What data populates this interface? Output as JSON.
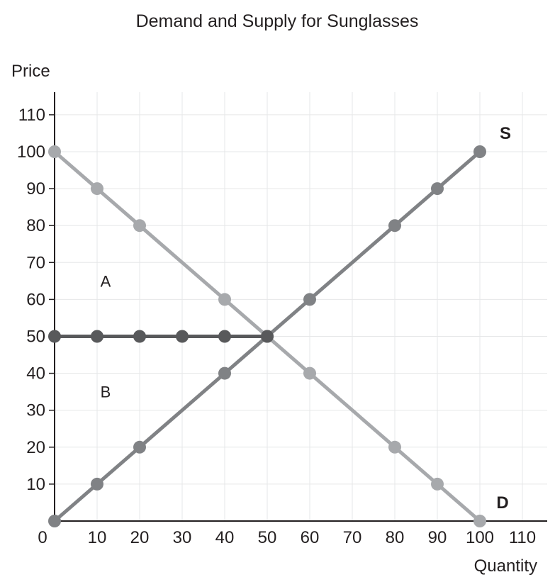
{
  "chart_data": {
    "type": "line",
    "title": "Demand and Supply for Sunglasses",
    "xlabel": "Quantity",
    "ylabel": "Price",
    "xlim": [
      0,
      115
    ],
    "ylim": [
      0,
      115
    ],
    "x_ticks": [
      0,
      10,
      20,
      30,
      40,
      50,
      60,
      70,
      80,
      90,
      100,
      110
    ],
    "y_ticks": [
      10,
      20,
      30,
      40,
      50,
      60,
      70,
      80,
      90,
      100,
      110
    ],
    "grid": true,
    "series": [
      {
        "name": "D",
        "color": "#a7a9ac",
        "points": [
          [
            0,
            100
          ],
          [
            10,
            90
          ],
          [
            20,
            80
          ],
          [
            40,
            60
          ],
          [
            50,
            50
          ],
          [
            60,
            40
          ],
          [
            80,
            20
          ],
          [
            90,
            10
          ],
          [
            100,
            0
          ]
        ]
      },
      {
        "name": "S",
        "color": "#808285",
        "points": [
          [
            0,
            0
          ],
          [
            10,
            10
          ],
          [
            20,
            20
          ],
          [
            40,
            40
          ],
          [
            50,
            50
          ],
          [
            60,
            60
          ],
          [
            80,
            80
          ],
          [
            90,
            90
          ],
          [
            100,
            100
          ]
        ]
      },
      {
        "name": "",
        "color": "#58595b",
        "points": [
          [
            0,
            50
          ],
          [
            10,
            50
          ],
          [
            20,
            50
          ],
          [
            30,
            50
          ],
          [
            40,
            50
          ],
          [
            50,
            50
          ]
        ]
      }
    ],
    "annotations": [
      {
        "text": "A",
        "x": 15,
        "y": 65
      },
      {
        "text": "B",
        "x": 15,
        "y": 35
      }
    ],
    "curve_labels": [
      {
        "text": "S",
        "series": "S"
      },
      {
        "text": "D",
        "series": "D"
      }
    ]
  }
}
